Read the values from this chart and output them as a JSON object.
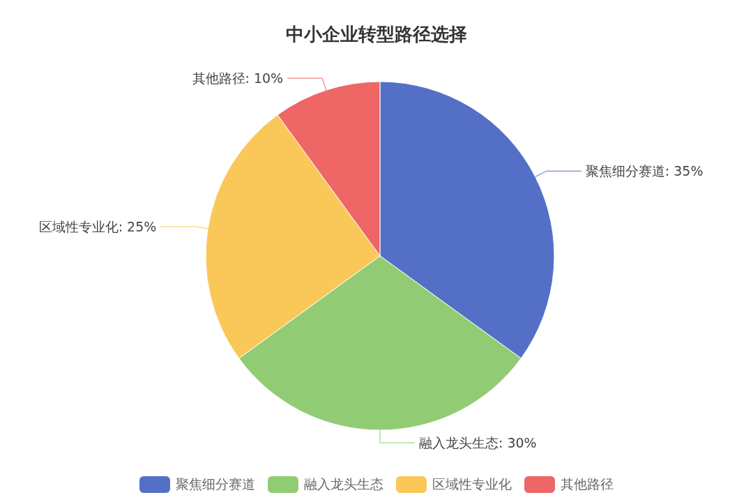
{
  "chart_data": {
    "type": "pie",
    "title": "中小企业转型路径选择",
    "categories": [
      "聚焦细分赛道",
      "融入龙头生态",
      "区域性专业化",
      "其他路径"
    ],
    "values": [
      35,
      30,
      25,
      10
    ],
    "value_labels": [
      "聚焦细分赛道: 35%",
      "融入龙头生态: 30%",
      "区域性专业化: 25%",
      "其他路径: 10%"
    ],
    "colors": [
      "#5470c6",
      "#91cc75",
      "#fac858",
      "#ee6666"
    ],
    "legend": "bottom"
  }
}
